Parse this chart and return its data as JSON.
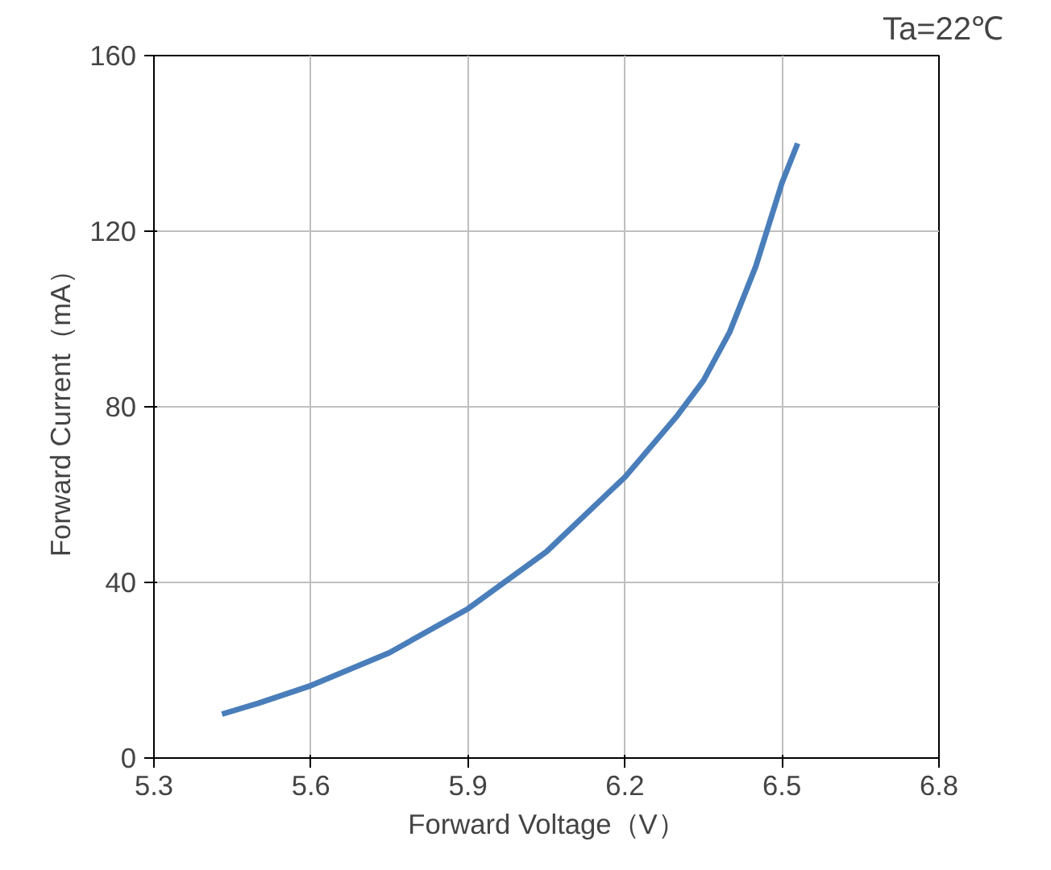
{
  "chart_data": {
    "type": "line",
    "annotations": [
      "Ta=22℃"
    ],
    "xlabel": "Forward Voltage（V）",
    "ylabel": "Forward Current（mA）",
    "x": [
      5.43,
      5.5,
      5.6,
      5.75,
      5.9,
      6.05,
      6.2,
      6.3,
      6.35,
      6.4,
      6.45,
      6.5,
      6.53
    ],
    "series": [
      {
        "color": "#4a7ebb",
        "values": [
          10,
          12.5,
          16.5,
          24,
          34,
          47,
          64,
          78,
          86,
          97,
          112,
          131,
          140
        ]
      }
    ],
    "xlim": [
      5.3,
      6.8
    ],
    "xticks": [
      5.3,
      5.6,
      5.9,
      6.2,
      6.5,
      6.8
    ],
    "ylim": [
      0,
      160
    ],
    "yticks": [
      0,
      40,
      80,
      120,
      160
    ],
    "grid": true
  }
}
